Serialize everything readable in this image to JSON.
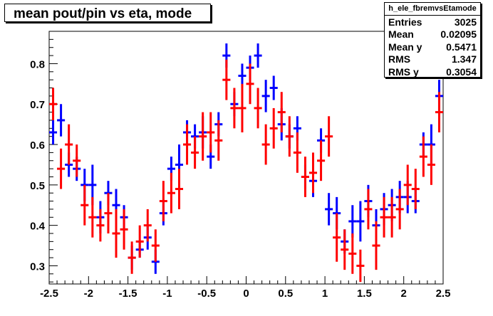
{
  "chart_data": {
    "type": "scatter",
    "title": "mean pout/pin vs eta, mode",
    "xlim": [
      -2.5,
      2.5
    ],
    "ylim": [
      0.255,
      0.88
    ],
    "x_ticks": [
      "-2.5",
      "-2",
      "-1.5",
      "-1",
      "-0.5",
      "0",
      "0.5",
      "1",
      "1.5",
      "2",
      "2.5"
    ],
    "y_ticks": [
      "0.3",
      "0.4",
      "0.5",
      "0.6",
      "0.7",
      "0.8"
    ],
    "series": [
      {
        "color": "#0000ff",
        "points": [
          [
            -2.45,
            0.63,
            0.03
          ],
          [
            -2.35,
            0.66,
            0.04
          ],
          [
            -2.25,
            0.55,
            0.03
          ],
          [
            -2.15,
            0.54,
            0.03
          ],
          [
            -2.05,
            0.5,
            0.04
          ],
          [
            -1.95,
            0.5,
            0.05
          ],
          [
            -1.85,
            0.42,
            0.04
          ],
          [
            -1.75,
            0.48,
            0.03
          ],
          [
            -1.65,
            0.45,
            0.04
          ],
          [
            -1.55,
            0.42,
            0.03
          ],
          [
            -1.45,
            0.32,
            0.03
          ],
          [
            -1.35,
            0.34,
            0.02
          ],
          [
            -1.25,
            0.37,
            0.03
          ],
          [
            -1.15,
            0.31,
            0.03
          ],
          [
            -1.05,
            0.43,
            0.03
          ],
          [
            -0.95,
            0.54,
            0.03
          ],
          [
            -0.85,
            0.55,
            0.05
          ],
          [
            -0.75,
            0.63,
            0.03
          ],
          [
            -0.65,
            0.62,
            0.03
          ],
          [
            -0.55,
            0.63,
            0.04
          ],
          [
            -0.45,
            0.57,
            0.03
          ],
          [
            -0.35,
            0.65,
            0.03
          ],
          [
            -0.25,
            0.82,
            0.03
          ],
          [
            -0.15,
            0.7,
            0.03
          ],
          [
            -0.05,
            0.77,
            0.03
          ],
          [
            0.05,
            0.79,
            0.03
          ],
          [
            0.15,
            0.82,
            0.03
          ],
          [
            0.25,
            0.72,
            0.04
          ],
          [
            0.35,
            0.74,
            0.03
          ],
          [
            0.45,
            0.65,
            0.04
          ],
          [
            0.55,
            0.62,
            0.03
          ],
          [
            0.65,
            0.64,
            0.03
          ],
          [
            0.75,
            0.52,
            0.03
          ],
          [
            0.85,
            0.51,
            0.04
          ],
          [
            0.95,
            0.61,
            0.03
          ],
          [
            1.05,
            0.44,
            0.04
          ],
          [
            1.15,
            0.43,
            0.04
          ],
          [
            1.25,
            0.36,
            0.03
          ],
          [
            1.35,
            0.41,
            0.04
          ],
          [
            1.45,
            0.41,
            0.05
          ],
          [
            1.55,
            0.46,
            0.04
          ],
          [
            1.65,
            0.4,
            0.04
          ],
          [
            1.75,
            0.44,
            0.04
          ],
          [
            1.85,
            0.45,
            0.04
          ],
          [
            1.95,
            0.47,
            0.04
          ],
          [
            2.05,
            0.47,
            0.04
          ],
          [
            2.15,
            0.46,
            0.03
          ],
          [
            2.25,
            0.6,
            0.03
          ],
          [
            2.35,
            0.6,
            0.05
          ],
          [
            2.45,
            0.72,
            0.04
          ]
        ]
      },
      {
        "color": "#ff0000",
        "points": [
          [
            -2.45,
            0.7,
            0.04
          ],
          [
            -2.35,
            0.54,
            0.05
          ],
          [
            -2.25,
            0.6,
            0.05
          ],
          [
            -2.15,
            0.56,
            0.04
          ],
          [
            -2.05,
            0.45,
            0.05
          ],
          [
            -1.95,
            0.42,
            0.05
          ],
          [
            -1.85,
            0.4,
            0.04
          ],
          [
            -1.75,
            0.43,
            0.05
          ],
          [
            -1.65,
            0.38,
            0.06
          ],
          [
            -1.55,
            0.39,
            0.05
          ],
          [
            -1.45,
            0.32,
            0.04
          ],
          [
            -1.35,
            0.36,
            0.04
          ],
          [
            -1.25,
            0.4,
            0.04
          ],
          [
            -1.15,
            0.35,
            0.04
          ],
          [
            -1.05,
            0.46,
            0.05
          ],
          [
            -0.95,
            0.48,
            0.05
          ],
          [
            -0.85,
            0.49,
            0.05
          ],
          [
            -0.75,
            0.6,
            0.05
          ],
          [
            -0.65,
            0.58,
            0.04
          ],
          [
            -0.55,
            0.62,
            0.06
          ],
          [
            -0.45,
            0.63,
            0.05
          ],
          [
            -0.35,
            0.61,
            0.05
          ],
          [
            -0.25,
            0.76,
            0.05
          ],
          [
            -0.15,
            0.69,
            0.05
          ],
          [
            -0.05,
            0.69,
            0.06
          ],
          [
            0.05,
            0.75,
            0.05
          ],
          [
            0.15,
            0.69,
            0.05
          ],
          [
            0.25,
            0.6,
            0.05
          ],
          [
            0.35,
            0.64,
            0.05
          ],
          [
            0.45,
            0.68,
            0.05
          ],
          [
            0.55,
            0.62,
            0.05
          ],
          [
            0.65,
            0.58,
            0.05
          ],
          [
            0.75,
            0.52,
            0.05
          ],
          [
            0.85,
            0.53,
            0.05
          ],
          [
            0.95,
            0.56,
            0.05
          ],
          [
            1.05,
            0.62,
            0.05
          ],
          [
            1.15,
            0.37,
            0.06
          ],
          [
            1.25,
            0.34,
            0.05
          ],
          [
            1.35,
            0.33,
            0.05
          ],
          [
            1.45,
            0.3,
            0.04
          ],
          [
            1.55,
            0.44,
            0.05
          ],
          [
            1.65,
            0.35,
            0.06
          ],
          [
            1.75,
            0.42,
            0.05
          ],
          [
            1.85,
            0.42,
            0.05
          ],
          [
            1.95,
            0.44,
            0.05
          ],
          [
            2.05,
            0.5,
            0.05
          ],
          [
            2.15,
            0.49,
            0.05
          ],
          [
            2.25,
            0.57,
            0.05
          ],
          [
            2.35,
            0.55,
            0.05
          ],
          [
            2.45,
            0.68,
            0.05
          ]
        ]
      }
    ]
  },
  "stats": {
    "name": "h_ele_fbremvsEtamode",
    "rows": [
      {
        "label": "Entries",
        "value": "3025"
      },
      {
        "label": "Mean",
        "value": "0.02095"
      },
      {
        "label": "Mean y",
        "value": "0.5471"
      },
      {
        "label": "RMS",
        "value": "1.347"
      },
      {
        "label": "RMS y",
        "value": "0.3054"
      }
    ]
  }
}
